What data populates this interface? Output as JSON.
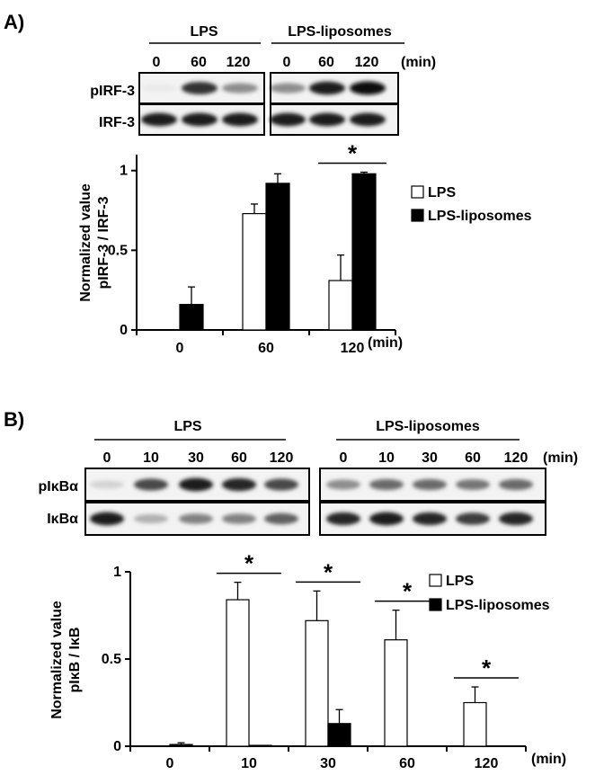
{
  "panelA": {
    "label": "A)",
    "groups": [
      "LPS",
      "LPS-liposomes"
    ],
    "times": [
      "0",
      "60",
      "120"
    ],
    "unit": "(min)",
    "blot_rows": [
      "pIRF-3",
      "IRF-3"
    ],
    "bands": {
      "pIRF-3": [
        [
          0.05,
          0.85,
          0.45
        ],
        [
          0.45,
          0.95,
          1.0
        ]
      ],
      "IRF-3": [
        [
          0.95,
          0.95,
          0.95
        ],
        [
          0.95,
          0.95,
          0.95
        ]
      ]
    },
    "chart_data": {
      "type": "bar",
      "categories": [
        "0",
        "60",
        "120"
      ],
      "xunit": "(min)",
      "ylabel_line1": "Normalized value",
      "ylabel_line2": "pIRF-3 / IRF-3",
      "ylim": [
        0,
        1.1
      ],
      "yticks": [
        "0",
        "0.5",
        "1"
      ],
      "ytick_values": [
        0,
        0.5,
        1
      ],
      "legend_position": "right",
      "series": [
        {
          "name": "LPS",
          "values": [
            0,
            0.73,
            0.31
          ],
          "errors": [
            0,
            0.06,
            0.16
          ],
          "fill": "#ffffff"
        },
        {
          "name": "LPS-liposomes",
          "values": [
            0.16,
            0.92,
            0.98
          ],
          "errors": [
            0.11,
            0.06,
            0.01
          ],
          "fill": "#000000"
        }
      ],
      "significance": [
        {
          "category": 2,
          "label": "*"
        }
      ]
    }
  },
  "panelB": {
    "label": "B)",
    "groups": [
      "LPS",
      "LPS-liposomes"
    ],
    "times": [
      "0",
      "10",
      "30",
      "60",
      "120"
    ],
    "unit": "(min)",
    "blot_rows": [
      "pIκBα",
      "IκBα"
    ],
    "bands": {
      "pIκBα": [
        [
          0.15,
          0.75,
          0.95,
          0.9,
          0.75
        ],
        [
          0.45,
          0.6,
          0.6,
          0.55,
          0.6
        ]
      ],
      "IκBα": [
        [
          0.95,
          0.3,
          0.5,
          0.5,
          0.65
        ],
        [
          0.9,
          0.95,
          0.9,
          0.8,
          0.9
        ]
      ]
    },
    "chart_data": {
      "type": "bar",
      "categories": [
        "0",
        "10",
        "30",
        "60",
        "120"
      ],
      "xunit": "(min)",
      "ylabel_line1": "Normalized value",
      "ylabel_line2": "pIκB / IκB",
      "ylim": [
        0,
        1.0
      ],
      "yticks": [
        "0",
        "0.5",
        "1"
      ],
      "ytick_values": [
        0,
        0.5,
        1
      ],
      "legend_position": "top-right",
      "series": [
        {
          "name": "LPS",
          "values": [
            0,
            0.84,
            0.72,
            0.61,
            0.25
          ],
          "errors": [
            0,
            0.1,
            0.17,
            0.17,
            0.09
          ],
          "fill": "#ffffff"
        },
        {
          "name": "LPS-liposomes",
          "values": [
            0.01,
            0.005,
            0.13,
            0,
            0
          ],
          "errors": [
            0.01,
            0.0,
            0.08,
            0,
            0
          ],
          "fill": "#000000"
        }
      ],
      "significance": [
        {
          "category": 1,
          "label": "*"
        },
        {
          "category": 2,
          "label": "*"
        },
        {
          "category": 3,
          "label": "*"
        },
        {
          "category": 4,
          "label": "*"
        }
      ]
    }
  }
}
